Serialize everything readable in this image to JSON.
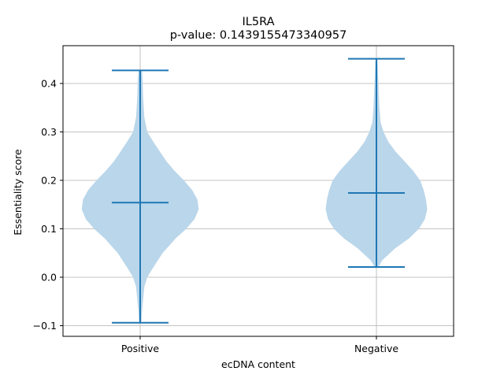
{
  "chart_data": {
    "type": "violin",
    "title": "IL5RA",
    "subtitle": "p-value: 0.1439155473340957",
    "xlabel": "ecDNA content",
    "ylabel": "Essentiality score",
    "categories": [
      "Positive",
      "Negative"
    ],
    "ylim": [
      -0.122,
      0.478
    ],
    "yticks": [
      -0.1,
      0.0,
      0.1,
      0.2,
      0.3,
      0.4
    ],
    "ytick_labels": [
      "−0.1",
      "0.0",
      "0.1",
      "0.2",
      "0.3",
      "0.4"
    ],
    "grid": true,
    "colors": {
      "body": "#bad6ea",
      "lines": "#1f77b4",
      "grid": "#b0b0b0"
    },
    "series": [
      {
        "category": "Positive",
        "min": -0.094,
        "max": 0.427,
        "median": 0.154,
        "density": [
          [
            -0.094,
            0.02
          ],
          [
            -0.07,
            0.03
          ],
          [
            -0.045,
            0.05
          ],
          [
            -0.02,
            0.07
          ],
          [
            0.0,
            0.12
          ],
          [
            0.02,
            0.22
          ],
          [
            0.05,
            0.38
          ],
          [
            0.08,
            0.6
          ],
          [
            0.1,
            0.78
          ],
          [
            0.12,
            0.92
          ],
          [
            0.14,
            0.99
          ],
          [
            0.16,
            0.97
          ],
          [
            0.18,
            0.88
          ],
          [
            0.2,
            0.74
          ],
          [
            0.22,
            0.58
          ],
          [
            0.24,
            0.44
          ],
          [
            0.26,
            0.33
          ],
          [
            0.28,
            0.22
          ],
          [
            0.3,
            0.12
          ],
          [
            0.33,
            0.07
          ],
          [
            0.37,
            0.05
          ],
          [
            0.41,
            0.04
          ],
          [
            0.427,
            0.03
          ]
        ]
      },
      {
        "category": "Negative",
        "min": 0.021,
        "max": 0.451,
        "median": 0.174,
        "density": [
          [
            0.021,
            0.03
          ],
          [
            0.035,
            0.1
          ],
          [
            0.06,
            0.32
          ],
          [
            0.08,
            0.55
          ],
          [
            0.1,
            0.72
          ],
          [
            0.12,
            0.82
          ],
          [
            0.14,
            0.86
          ],
          [
            0.16,
            0.84
          ],
          [
            0.18,
            0.8
          ],
          [
            0.2,
            0.74
          ],
          [
            0.22,
            0.62
          ],
          [
            0.24,
            0.47
          ],
          [
            0.26,
            0.32
          ],
          [
            0.28,
            0.2
          ],
          [
            0.3,
            0.12
          ],
          [
            0.32,
            0.07
          ],
          [
            0.35,
            0.05
          ],
          [
            0.38,
            0.04
          ],
          [
            0.41,
            0.03
          ],
          [
            0.44,
            0.02
          ],
          [
            0.451,
            0.015
          ]
        ]
      }
    ]
  }
}
